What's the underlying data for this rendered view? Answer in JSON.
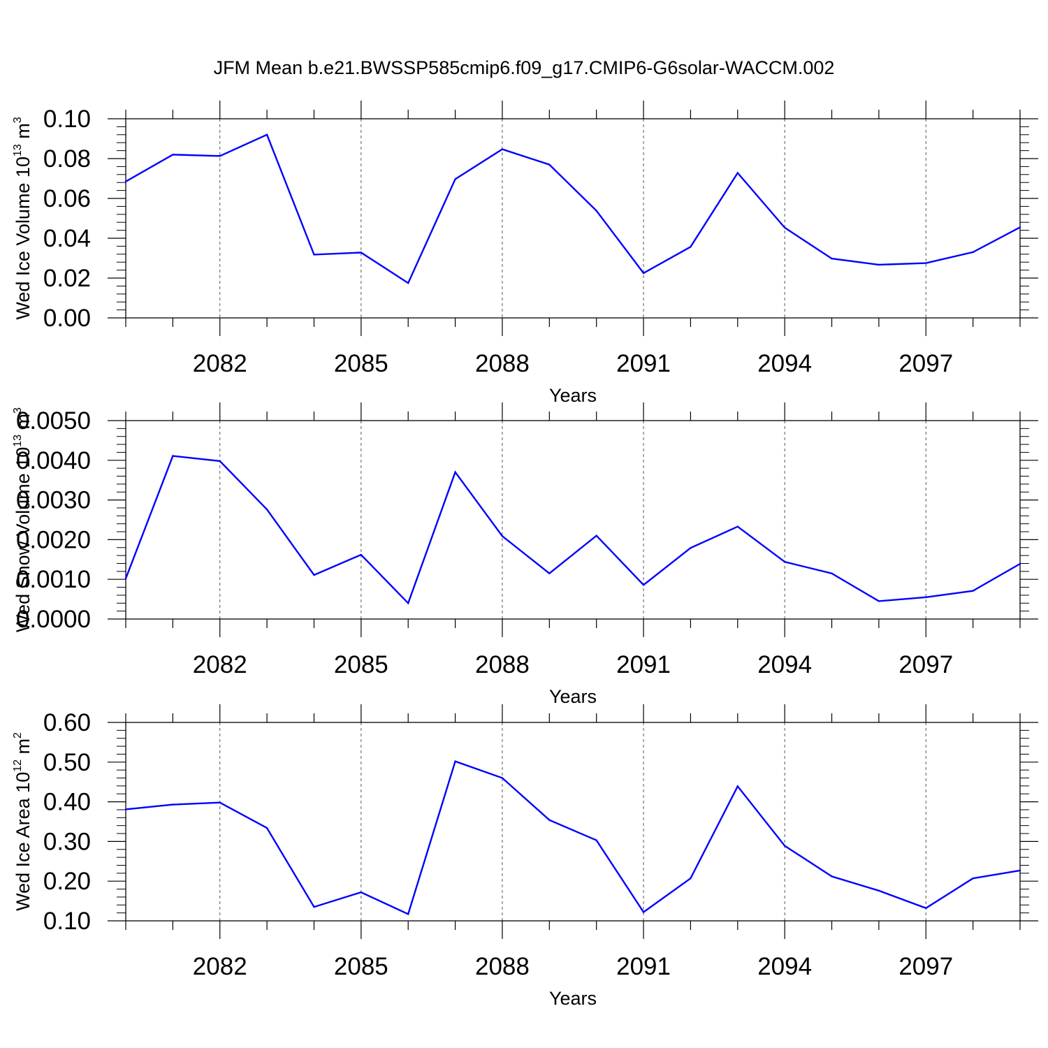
{
  "chart_data": {
    "title": "JFM Mean b.e21.BWSSP585cmip6.f09_g17.CMIP6-G6solar-WACCM.002",
    "panels": [
      {
        "type": "line",
        "ylabel_main": "Wed Ice Volume 10",
        "ylabel_exp": "13",
        "ylabel_unit": " m",
        "ylabel_unit_exp": "3",
        "xlabel": "Years",
        "xlim": [
          2080,
          2099
        ],
        "ylim": [
          0.0,
          0.1
        ],
        "x_ticks": [
          2082,
          2085,
          2088,
          2091,
          2094,
          2097
        ],
        "x_tick_labels": [
          "2082",
          "2085",
          "2088",
          "2091",
          "2094",
          "2097"
        ],
        "y_ticks": [
          0.0,
          0.02,
          0.04,
          0.06,
          0.08,
          0.1
        ],
        "y_tick_labels": [
          "0.00",
          "0.02",
          "0.04",
          "0.06",
          "0.08",
          "0.10"
        ],
        "x": [
          2080,
          2081,
          2082,
          2083,
          2084,
          2085,
          2086,
          2087,
          2088,
          2089,
          2090,
          2091,
          2092,
          2093,
          2094,
          2095,
          2096,
          2097,
          2098,
          2099
        ],
        "y": [
          0.0685,
          0.082,
          0.0813,
          0.092,
          0.0318,
          0.0328,
          0.0175,
          0.0697,
          0.0847,
          0.077,
          0.0538,
          0.0225,
          0.0357,
          0.0728,
          0.0453,
          0.0298,
          0.0267,
          0.0275,
          0.033,
          0.0455
        ],
        "color": "#0000ff",
        "grid": "dashed vertical at major x ticks"
      },
      {
        "type": "line",
        "ylabel_main": "Wed Snow Volume 10",
        "ylabel_exp": "13",
        "ylabel_unit": " m",
        "ylabel_unit_exp": "3",
        "xlabel": "Years",
        "xlim": [
          2080,
          2099
        ],
        "ylim": [
          0.0,
          0.005
        ],
        "x_ticks": [
          2082,
          2085,
          2088,
          2091,
          2094,
          2097
        ],
        "x_tick_labels": [
          "2082",
          "2085",
          "2088",
          "2091",
          "2094",
          "2097"
        ],
        "y_ticks": [
          0.0,
          0.001,
          0.002,
          0.003,
          0.004,
          0.005
        ],
        "y_tick_labels": [
          "0.0000",
          "0.0010",
          "0.0020",
          "0.0030",
          "0.0040",
          "0.0050"
        ],
        "x": [
          2080,
          2081,
          2082,
          2083,
          2084,
          2085,
          2086,
          2087,
          2088,
          2089,
          2090,
          2091,
          2092,
          2093,
          2094,
          2095,
          2096,
          2097,
          2098,
          2099
        ],
        "y": [
          0.00102,
          0.00411,
          0.00398,
          0.00276,
          0.00111,
          0.00162,
          0.0004,
          0.0037,
          0.00209,
          0.00115,
          0.0021,
          0.00086,
          0.00179,
          0.00233,
          0.00144,
          0.00115,
          0.00045,
          0.00055,
          0.00071,
          0.00139
        ],
        "color": "#0000ff",
        "grid": "dashed vertical at major x ticks"
      },
      {
        "type": "line",
        "ylabel_main": "Wed Ice Area 10",
        "ylabel_exp": "12",
        "ylabel_unit": " m",
        "ylabel_unit_exp": "2",
        "xlabel": "Years",
        "xlim": [
          2080,
          2099
        ],
        "ylim": [
          0.1,
          0.6
        ],
        "x_ticks": [
          2082,
          2085,
          2088,
          2091,
          2094,
          2097
        ],
        "x_tick_labels": [
          "2082",
          "2085",
          "2088",
          "2091",
          "2094",
          "2097"
        ],
        "y_ticks": [
          0.1,
          0.2,
          0.3,
          0.4,
          0.5,
          0.6
        ],
        "y_tick_labels": [
          "0.10",
          "0.20",
          "0.30",
          "0.40",
          "0.50",
          "0.60"
        ],
        "x": [
          2080,
          2081,
          2082,
          2083,
          2084,
          2085,
          2086,
          2087,
          2088,
          2089,
          2090,
          2091,
          2092,
          2093,
          2094,
          2095,
          2096,
          2097,
          2098,
          2099
        ],
        "y": [
          0.381,
          0.393,
          0.398,
          0.334,
          0.135,
          0.172,
          0.117,
          0.502,
          0.46,
          0.354,
          0.303,
          0.122,
          0.207,
          0.439,
          0.289,
          0.212,
          0.176,
          0.132,
          0.207,
          0.227
        ],
        "color": "#0000ff",
        "grid": "dashed vertical at major x ticks"
      }
    ]
  }
}
